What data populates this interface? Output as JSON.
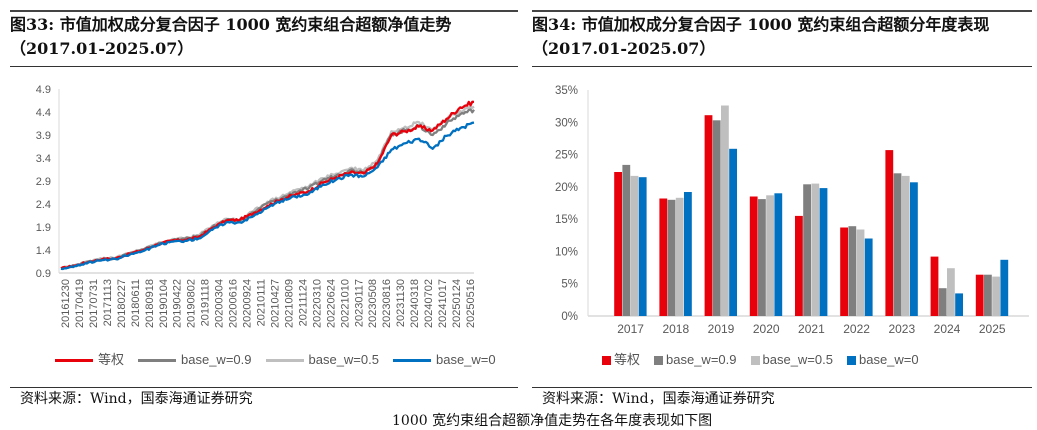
{
  "left_panel": {
    "title": "图33:  市值加权成分复合因子 1000 宽约束组合超额净值走势（2017.01-2025.07）",
    "source": "资料来源：Wind，国泰海通证券研究"
  },
  "right_panel": {
    "title": "图34:  市值加权成分复合因子 1000 宽约束组合超额分年度表现（2017.01-2025.07）",
    "source": "资料来源：Wind，国泰海通证券研究"
  },
  "footer_text": "1000 宽约束组合超额净值走势在各年度表现如下图",
  "colors": {
    "equal_weight": "#E8000B",
    "base_w_0_9": "#7F7F7F",
    "base_w_0_5": "#BFBFBF",
    "base_w_0": "#0070C0",
    "axis": "#D9D9D9",
    "tick_text": "#595959"
  },
  "chart_data": [
    {
      "type": "line",
      "title": "市值加权成分复合因子 1000 宽约束组合超额净值走势（2017.01-2025.07）",
      "xlabel": "",
      "ylabel": "",
      "ylim": [
        0.9,
        4.9
      ],
      "yticks": [
        "0.9",
        "1.4",
        "1.9",
        "2.4",
        "2.9",
        "3.4",
        "3.9",
        "4.4",
        "4.9"
      ],
      "grid": false,
      "legend_position": "bottom",
      "x_tick_labels": [
        "20161230",
        "20170419",
        "20170731",
        "20171113",
        "20180227",
        "20180611",
        "20180918",
        "20190104",
        "20190422",
        "20190802",
        "20191118",
        "20200304",
        "20200616",
        "20200924",
        "20210111",
        "20210427",
        "20210809",
        "20211124",
        "20220310",
        "20220624",
        "20221010",
        "20230117",
        "20230508",
        "20230816",
        "20231130",
        "20240318",
        "20240702",
        "20241017",
        "20250124",
        "20250516"
      ],
      "x": [
        "20161230",
        "20170419",
        "20170731",
        "20171113",
        "20180227",
        "20180611",
        "20180918",
        "20190104",
        "20190422",
        "20190802",
        "20191118",
        "20200304",
        "20200616",
        "20200924",
        "20210111",
        "20210427",
        "20210809",
        "20211124",
        "20220310",
        "20220624",
        "20221010",
        "20230117",
        "20230508",
        "20230816",
        "20231130",
        "20240318",
        "20240702",
        "20241017",
        "20250124",
        "20250516",
        "20250731"
      ],
      "series": [
        {
          "name": "等权",
          "color_key": "equal_weight",
          "values": [
            1.0,
            1.06,
            1.14,
            1.2,
            1.22,
            1.32,
            1.4,
            1.52,
            1.6,
            1.62,
            1.68,
            1.88,
            2.04,
            2.06,
            2.2,
            2.36,
            2.5,
            2.6,
            2.68,
            2.86,
            2.98,
            3.08,
            3.06,
            3.28,
            3.9,
            3.98,
            4.08,
            4.0,
            4.25,
            4.5,
            4.62
          ]
        },
        {
          "name": "base_w=0.9",
          "color_key": "base_w_0_9",
          "values": [
            1.0,
            1.06,
            1.15,
            1.2,
            1.23,
            1.33,
            1.41,
            1.53,
            1.61,
            1.64,
            1.7,
            1.9,
            2.05,
            2.03,
            2.22,
            2.42,
            2.52,
            2.66,
            2.74,
            2.92,
            3.02,
            3.14,
            3.1,
            3.3,
            3.92,
            4.0,
            4.1,
            3.9,
            4.15,
            4.35,
            4.45
          ]
        },
        {
          "name": "base_w=0.5",
          "color_key": "base_w_0_5",
          "values": [
            1.0,
            1.07,
            1.15,
            1.21,
            1.24,
            1.34,
            1.42,
            1.54,
            1.62,
            1.66,
            1.72,
            1.93,
            2.08,
            2.05,
            2.25,
            2.45,
            2.56,
            2.7,
            2.78,
            2.96,
            3.06,
            3.18,
            3.14,
            3.36,
            3.98,
            4.08,
            4.18,
            4.02,
            4.25,
            4.42,
            4.52
          ]
        },
        {
          "name": "base_w=0",
          "color_key": "base_w_0",
          "values": [
            0.99,
            1.05,
            1.13,
            1.18,
            1.2,
            1.3,
            1.38,
            1.5,
            1.58,
            1.6,
            1.65,
            1.84,
            2.0,
            2.0,
            2.14,
            2.32,
            2.46,
            2.56,
            2.62,
            2.82,
            2.93,
            3.04,
            3.0,
            3.2,
            3.58,
            3.72,
            3.82,
            3.6,
            3.88,
            4.05,
            4.17
          ]
        }
      ]
    },
    {
      "type": "bar",
      "title": "市值加权成分复合因子 1000 宽约束组合超额分年度表现（2017.01-2025.07）",
      "xlabel": "",
      "ylabel": "",
      "ylim": [
        0,
        35
      ],
      "yticks": [
        "0%",
        "5%",
        "10%",
        "15%",
        "20%",
        "25%",
        "30%",
        "35%"
      ],
      "grid": false,
      "legend_position": "bottom",
      "categories": [
        "2017",
        "2018",
        "2019",
        "2020",
        "2021",
        "2022",
        "2023",
        "2024",
        "2025"
      ],
      "series": [
        {
          "name": "等权",
          "color_key": "equal_weight",
          "values": [
            22.3,
            18.2,
            31.1,
            18.5,
            15.5,
            13.7,
            25.7,
            9.2,
            6.4
          ]
        },
        {
          "name": "base_w=0.9",
          "color_key": "base_w_0_9",
          "values": [
            23.4,
            18.0,
            30.3,
            18.1,
            20.4,
            13.9,
            22.1,
            4.3,
            6.4
          ]
        },
        {
          "name": "base_w=0.5",
          "color_key": "base_w_0_5",
          "values": [
            21.7,
            18.3,
            32.6,
            18.7,
            20.5,
            13.4,
            21.7,
            7.4,
            6.1
          ]
        },
        {
          "name": "base_w=0",
          "color_key": "base_w_0",
          "values": [
            21.5,
            19.2,
            25.9,
            19.0,
            19.8,
            12.0,
            20.7,
            3.5,
            8.7
          ]
        }
      ]
    }
  ]
}
